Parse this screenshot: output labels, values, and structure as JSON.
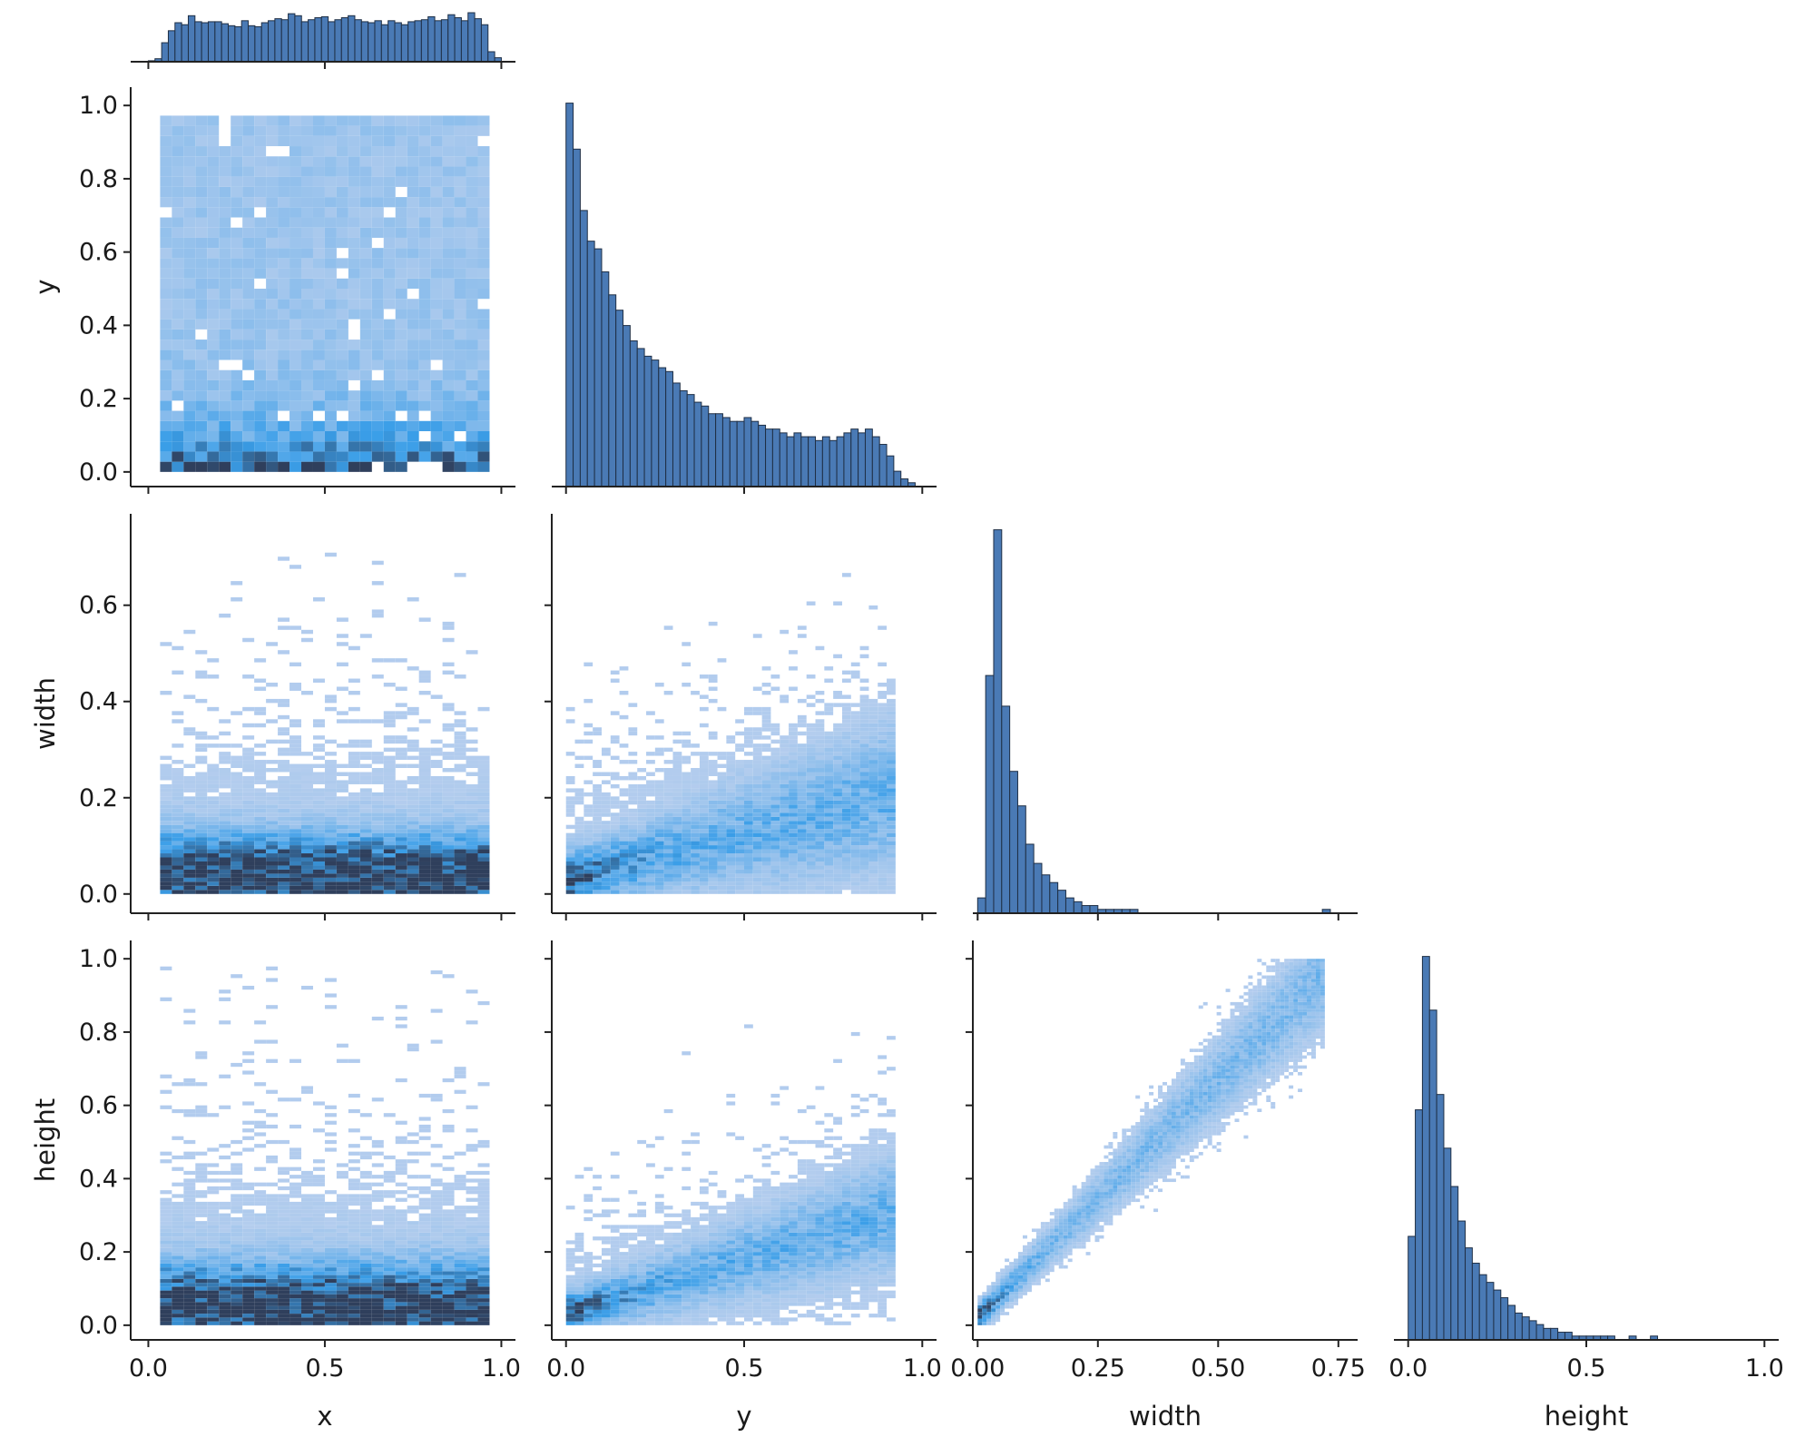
{
  "chart_data": {
    "type": "heatmap",
    "variables": [
      "x",
      "y",
      "width",
      "height"
    ],
    "layout": "corner pairplot: marginal histograms on diagonal, 2D histograms below diagonal",
    "colors": {
      "bar": "#4a7ab5",
      "bar_edge": "#1f2f45",
      "heat_low": "#bcd0ee",
      "heat_mid": "#3a9ee8",
      "heat_high": "#2f3f5c"
    },
    "axes": {
      "x": {
        "label": "x",
        "lim": [
          -0.05,
          1.04
        ],
        "ticks": [
          0.0,
          0.5,
          1.0
        ],
        "tick_labels": [
          "0.0",
          "0.5",
          "1.0"
        ]
      },
      "y": {
        "label": "y",
        "lim": [
          -0.04,
          1.05
        ],
        "ticks": [
          0.0,
          0.2,
          0.4,
          0.6,
          0.8,
          1.0
        ],
        "tick_labels": [
          "0.0",
          "0.2",
          "0.4",
          "0.6",
          "0.8",
          "1.0"
        ],
        "x_ticks": [
          0.0,
          0.5,
          1.0
        ],
        "x_tick_labels": [
          "0.0",
          "0.5",
          "1.0"
        ],
        "x_lim": [
          -0.04,
          1.04
        ]
      },
      "width": {
        "label": "width",
        "lim": [
          -0.04,
          0.79
        ],
        "ticks": [
          0.0,
          0.2,
          0.4,
          0.6
        ],
        "tick_labels": [
          "0.0",
          "0.2",
          "0.4",
          "0.6"
        ],
        "x_ticks": [
          0.0,
          0.25,
          0.5,
          0.75
        ],
        "x_tick_labels": [
          "0.00",
          "0.25",
          "0.50",
          "0.75"
        ],
        "x_lim": [
          -0.01,
          0.79
        ]
      },
      "height": {
        "label": "height",
        "lim": [
          -0.04,
          1.05
        ],
        "ticks": [
          0.0,
          0.2,
          0.4,
          0.6,
          0.8,
          1.0
        ],
        "tick_labels": [
          "0.0",
          "0.2",
          "0.4",
          "0.6",
          "0.8",
          "1.0"
        ],
        "x_ticks": [
          0.0,
          0.5,
          1.0
        ],
        "x_tick_labels": [
          "0.0",
          "0.5",
          "1.0"
        ],
        "x_lim": [
          -0.04,
          1.04
        ]
      }
    },
    "histograms": {
      "x": {
        "range": [
          0.0,
          1.0
        ],
        "counts": [
          2,
          6,
          38,
          62,
          78,
          74,
          92,
          80,
          78,
          80,
          80,
          76,
          72,
          70,
          82,
          72,
          70,
          78,
          82,
          86,
          84,
          96,
          92,
          80,
          84,
          88,
          90,
          80,
          84,
          88,
          92,
          84,
          80,
          78,
          82,
          74,
          82,
          78,
          74,
          80,
          82,
          84,
          90,
          82,
          84,
          94,
          88,
          82,
          98,
          86,
          74,
          20,
          8
        ]
      },
      "y": {
        "range": [
          0.0,
          1.0
        ],
        "counts": [
          100,
          88,
          72,
          64,
          62,
          56,
          50,
          46,
          42,
          38,
          36,
          34,
          33,
          31,
          30,
          27,
          25,
          24,
          22,
          21,
          19,
          19,
          18,
          17,
          17,
          18,
          17,
          16,
          15,
          15,
          14,
          13,
          14,
          13,
          13,
          12,
          13,
          12,
          13,
          14,
          15,
          14,
          15,
          13,
          11,
          8,
          4,
          2,
          1,
          0
        ]
      },
      "width": {
        "range": [
          0.0,
          0.75
        ],
        "counts": [
          4,
          62,
          100,
          54,
          37,
          28,
          18,
          13,
          10,
          8,
          6,
          4,
          3,
          2,
          2,
          1,
          1,
          1,
          1,
          1,
          0,
          0,
          0,
          0,
          0,
          0,
          0,
          0,
          0,
          0,
          0,
          0,
          0,
          0,
          0,
          0,
          0,
          0,
          0,
          0,
          0,
          0,
          0,
          1,
          0
        ]
      },
      "height": {
        "range": [
          0.0,
          1.0
        ],
        "counts": [
          27,
          60,
          100,
          86,
          64,
          50,
          40,
          31,
          24,
          20,
          17,
          15,
          13,
          11,
          9,
          7,
          6,
          5,
          4,
          3,
          3,
          2,
          2,
          1,
          1,
          1,
          1,
          1,
          1,
          0,
          0,
          1,
          0,
          0,
          1,
          0,
          0,
          0,
          0,
          0,
          0,
          0,
          0,
          0,
          0,
          0,
          0,
          0,
          0,
          0
        ]
      }
    }
  }
}
